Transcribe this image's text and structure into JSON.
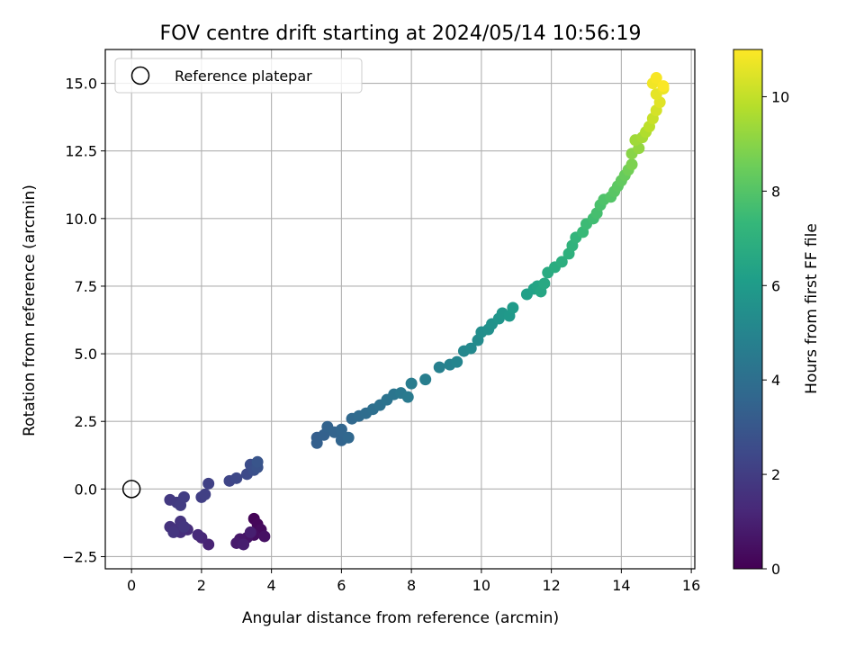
{
  "chart_data": {
    "type": "scatter",
    "title": "FOV centre drift starting at 2024/05/14 10:56:19",
    "xlabel": "Angular distance from reference (arcmin)",
    "ylabel": "Rotation from reference (arcmin)",
    "xlim": [
      -0.75,
      16.1
    ],
    "ylim": [
      -2.95,
      16.25
    ],
    "x_ticks": [
      0,
      2,
      4,
      6,
      8,
      10,
      12,
      14,
      16
    ],
    "y_ticks": [
      -2.5,
      0.0,
      2.5,
      5.0,
      7.5,
      10.0,
      12.5,
      15.0
    ],
    "grid": true,
    "legend": {
      "location": "top-left",
      "entries": [
        "Reference platepar"
      ]
    },
    "reference_marker": {
      "label": "Reference platepar",
      "x": 0,
      "y": 0
    },
    "colorbar": {
      "label": "Hours from first FF file",
      "range": [
        0,
        11
      ],
      "ticks": [
        0,
        2,
        4,
        6,
        8,
        10
      ],
      "colormap": "viridis",
      "stops": [
        "#440154",
        "#482878",
        "#3e4989",
        "#31688e",
        "#26828e",
        "#1f9e89",
        "#35b779",
        "#6ece58",
        "#b5de2b",
        "#fde725"
      ]
    },
    "series": [
      {
        "points": [
          [
            3.5,
            -1.1,
            0.1
          ],
          [
            3.6,
            -1.3,
            0.2
          ],
          [
            3.7,
            -1.5,
            0.3
          ],
          [
            3.5,
            -1.7,
            0.4
          ],
          [
            3.8,
            -1.75,
            0.5
          ],
          [
            3.3,
            -1.8,
            0.6
          ],
          [
            3.1,
            -1.85,
            0.7
          ],
          [
            3.0,
            -2.0,
            0.8
          ],
          [
            3.2,
            -2.05,
            0.9
          ],
          [
            3.4,
            -1.6,
            0.95
          ],
          [
            2.2,
            -2.05,
            1.1
          ],
          [
            2.0,
            -1.8,
            1.2
          ],
          [
            1.9,
            -1.7,
            1.3
          ],
          [
            1.6,
            -1.5,
            1.4
          ],
          [
            1.4,
            -1.6,
            1.5
          ],
          [
            1.2,
            -1.5,
            1.55
          ],
          [
            1.1,
            -1.4,
            1.6
          ],
          [
            1.4,
            -1.2,
            1.65
          ],
          [
            1.2,
            -1.6,
            1.7
          ],
          [
            1.5,
            -1.4,
            1.75
          ],
          [
            1.1,
            -0.4,
            1.85
          ],
          [
            1.3,
            -0.5,
            1.9
          ],
          [
            1.4,
            -0.6,
            1.95
          ],
          [
            1.5,
            -0.3,
            2.0
          ],
          [
            2.0,
            -0.3,
            2.05
          ],
          [
            2.1,
            -0.2,
            2.1
          ],
          [
            2.2,
            0.2,
            2.15
          ],
          [
            2.8,
            0.3,
            2.3
          ],
          [
            3.0,
            0.4,
            2.4
          ],
          [
            3.3,
            0.55,
            2.5
          ],
          [
            3.4,
            0.9,
            2.6
          ],
          [
            3.5,
            0.7,
            2.7
          ],
          [
            3.6,
            0.8,
            2.8
          ],
          [
            3.6,
            1.0,
            2.9
          ],
          [
            5.3,
            1.9,
            3.3
          ],
          [
            5.3,
            1.7,
            3.35
          ],
          [
            5.5,
            2.0,
            3.4
          ],
          [
            5.6,
            2.3,
            3.45
          ],
          [
            5.8,
            2.1,
            3.5
          ],
          [
            6.0,
            1.8,
            3.55
          ],
          [
            6.0,
            2.2,
            3.6
          ],
          [
            6.2,
            1.9,
            3.65
          ],
          [
            6.3,
            2.6,
            3.7
          ],
          [
            6.5,
            2.7,
            3.8
          ],
          [
            6.7,
            2.8,
            3.9
          ],
          [
            6.9,
            2.95,
            4.0
          ],
          [
            7.1,
            3.1,
            4.1
          ],
          [
            7.3,
            3.3,
            4.2
          ],
          [
            7.5,
            3.5,
            4.3
          ],
          [
            7.7,
            3.55,
            4.4
          ],
          [
            7.9,
            3.4,
            4.5
          ],
          [
            8.0,
            3.9,
            4.6
          ],
          [
            8.4,
            4.05,
            4.7
          ],
          [
            8.8,
            4.5,
            4.8
          ],
          [
            9.1,
            4.6,
            4.9
          ],
          [
            9.3,
            4.7,
            5.0
          ],
          [
            9.5,
            5.1,
            5.1
          ],
          [
            9.7,
            5.2,
            5.2
          ],
          [
            9.9,
            5.5,
            5.3
          ],
          [
            10.0,
            5.8,
            5.4
          ],
          [
            10.2,
            5.9,
            5.5
          ],
          [
            10.3,
            6.1,
            5.6
          ],
          [
            10.5,
            6.3,
            5.7
          ],
          [
            10.6,
            6.5,
            5.8
          ],
          [
            10.8,
            6.4,
            5.9
          ],
          [
            10.9,
            6.7,
            6.0
          ],
          [
            11.3,
            7.2,
            6.2
          ],
          [
            11.5,
            7.4,
            6.3
          ],
          [
            11.6,
            7.5,
            6.4
          ],
          [
            11.7,
            7.3,
            6.5
          ],
          [
            11.8,
            7.6,
            6.6
          ],
          [
            11.9,
            8.0,
            6.7
          ],
          [
            12.1,
            8.2,
            6.8
          ],
          [
            12.3,
            8.4,
            6.9
          ],
          [
            12.5,
            8.7,
            7.0
          ],
          [
            12.6,
            9.0,
            7.1
          ],
          [
            12.7,
            9.3,
            7.2
          ],
          [
            12.9,
            9.5,
            7.4
          ],
          [
            13.0,
            9.8,
            7.5
          ],
          [
            13.2,
            10.0,
            7.6
          ],
          [
            13.3,
            10.2,
            7.7
          ],
          [
            13.4,
            10.5,
            7.8
          ],
          [
            13.5,
            10.7,
            7.9
          ],
          [
            13.7,
            10.8,
            8.0
          ],
          [
            13.8,
            11.0,
            8.1
          ],
          [
            13.9,
            11.2,
            8.2
          ],
          [
            14.0,
            11.4,
            8.3
          ],
          [
            14.1,
            11.6,
            8.4
          ],
          [
            14.2,
            11.8,
            8.6
          ],
          [
            14.3,
            12.0,
            8.8
          ],
          [
            14.3,
            12.4,
            9.0
          ],
          [
            14.5,
            12.6,
            9.2
          ],
          [
            14.4,
            12.9,
            9.4
          ],
          [
            14.6,
            13.0,
            9.5
          ],
          [
            14.7,
            13.2,
            9.7
          ],
          [
            14.8,
            13.4,
            9.9
          ],
          [
            14.9,
            13.7,
            10.1
          ],
          [
            15.0,
            14.0,
            10.3
          ],
          [
            15.1,
            14.3,
            10.5
          ],
          [
            15.0,
            14.6,
            10.6
          ],
          [
            15.2,
            14.8,
            10.7
          ],
          [
            14.9,
            15.0,
            10.8
          ],
          [
            15.0,
            15.2,
            10.9
          ],
          [
            15.2,
            14.9,
            10.95
          ]
        ]
      }
    ]
  }
}
